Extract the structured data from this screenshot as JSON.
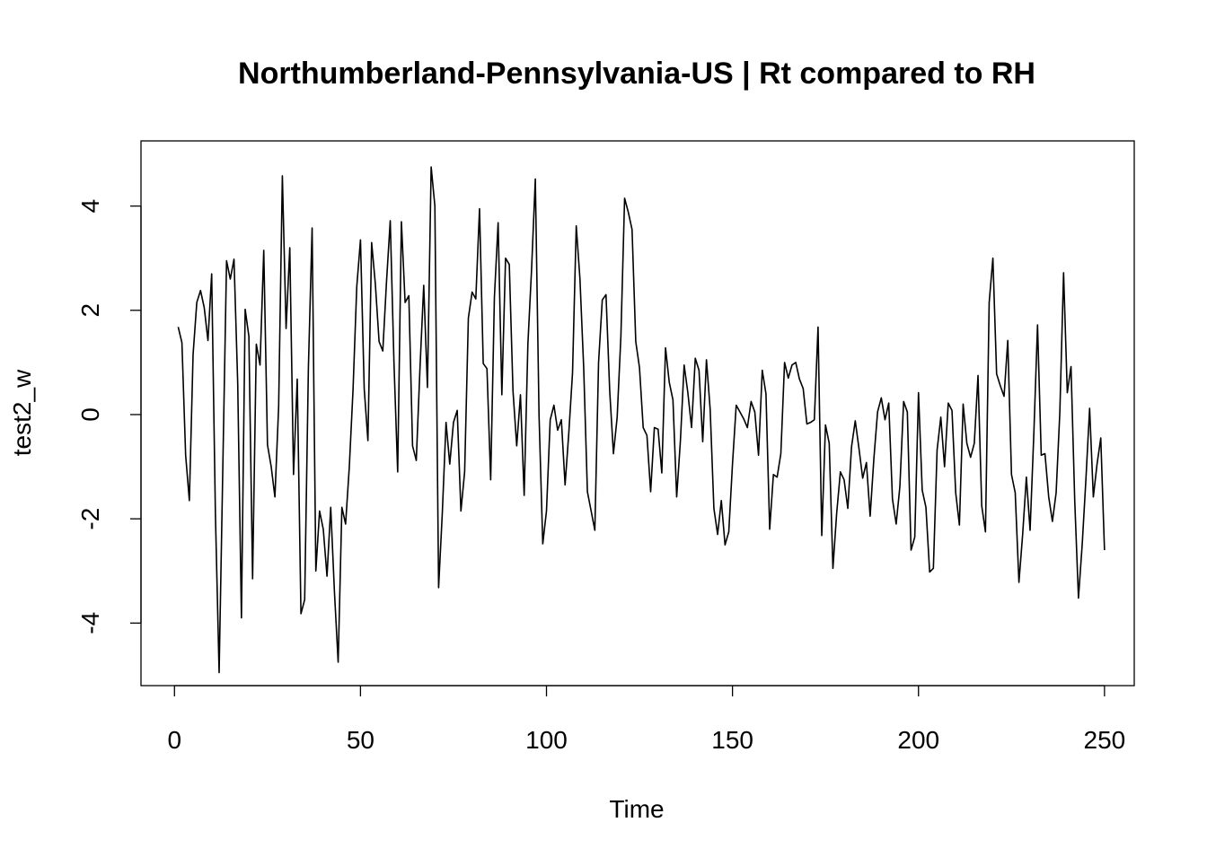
{
  "chart_data": {
    "type": "line",
    "title": "Northumberland-Pennsylvania-US | Rt compared to RH",
    "xlabel": "Time",
    "ylabel": "test2_w",
    "xlim": [
      -9,
      258
    ],
    "ylim": [
      -5.2,
      5.25
    ],
    "x_ticks": [
      0,
      50,
      100,
      150,
      200,
      250
    ],
    "y_ticks": [
      -4,
      -2,
      0,
      2,
      4
    ],
    "grid": false,
    "legend": "none",
    "line_color": "#000000",
    "series": [
      {
        "x_start": 1,
        "x_step": 1,
        "values": [
          1.68,
          1.38,
          -0.78,
          -1.65,
          1.15,
          2.15,
          2.38,
          2.05,
          1.42,
          2.7,
          -1.9,
          -4.95,
          -1.0,
          2.95,
          2.6,
          2.98,
          0.6,
          -3.9,
          2.02,
          1.5,
          -3.15,
          1.35,
          0.95,
          3.15,
          -0.58,
          -1.0,
          -1.58,
          0.15,
          4.58,
          1.65,
          3.2,
          -1.15,
          0.68,
          -3.82,
          -3.55,
          0.9,
          3.58,
          -3.0,
          -1.85,
          -2.2,
          -3.1,
          -1.78,
          -3.4,
          -4.75,
          -1.78,
          -2.1,
          -1.0,
          0.48,
          2.45,
          3.35,
          0.5,
          -0.5,
          3.3,
          2.5,
          1.4,
          1.22,
          2.55,
          3.72,
          1.0,
          -1.1,
          3.7,
          2.15,
          2.28,
          -0.6,
          -0.88,
          0.9,
          2.48,
          0.52,
          4.75,
          4.0,
          -3.32,
          -1.88,
          -0.15,
          -0.95,
          -0.15,
          0.08,
          -1.85,
          -1.1,
          1.85,
          2.35,
          2.22,
          3.95,
          0.98,
          0.88,
          -1.25,
          2.25,
          3.68,
          0.38,
          3.0,
          2.88,
          0.45,
          -0.6,
          0.38,
          -1.55,
          1.35,
          2.8,
          4.52,
          -0.02,
          -2.48,
          -1.85,
          -0.1,
          0.18,
          -0.3,
          -0.1,
          -1.35,
          -0.35,
          0.8,
          3.62,
          2.6,
          0.9,
          -1.48,
          -1.85,
          -2.22,
          1.0,
          2.2,
          2.3,
          0.45,
          -0.75,
          -0.05,
          1.5,
          4.15,
          3.88,
          3.55,
          1.4,
          0.9,
          -0.25,
          -0.4,
          -1.48,
          -0.25,
          -0.28,
          -1.12,
          1.28,
          0.62,
          0.28,
          -1.58,
          -0.5,
          0.95,
          0.42,
          -0.25,
          1.08,
          0.85,
          -0.52,
          1.05,
          0.1,
          -1.8,
          -2.3,
          -1.65,
          -2.5,
          -2.25,
          -0.95,
          0.18,
          0.05,
          -0.08,
          -0.25,
          0.25,
          0.05,
          -0.78,
          0.85,
          0.4,
          -2.2,
          -1.15,
          -1.2,
          -0.75,
          1.0,
          0.7,
          0.95,
          1.0,
          0.68,
          0.5,
          -0.18,
          -0.15,
          -0.1,
          1.68,
          -2.32,
          -0.2,
          -0.55,
          -2.95,
          -1.9,
          -1.1,
          -1.25,
          -1.8,
          -0.62,
          -0.12,
          -0.65,
          -1.22,
          -0.92,
          -1.95,
          -0.85,
          0.05,
          0.32,
          -0.1,
          0.22,
          -1.62,
          -2.1,
          -1.38,
          0.25,
          0.05,
          -2.6,
          -2.35,
          0.42,
          -1.45,
          -1.78,
          -3.02,
          -2.95,
          -0.68,
          -0.05,
          -1.0,
          0.22,
          0.08,
          -1.5,
          -2.12,
          0.2,
          -0.55,
          -0.82,
          -0.55,
          0.75,
          -1.75,
          -2.25,
          2.15,
          3.0,
          0.78,
          0.55,
          0.35,
          1.42,
          -1.15,
          -1.5,
          -3.22,
          -2.3,
          -1.2,
          -2.22,
          -0.38,
          1.72,
          -0.78,
          -0.75,
          -1.58,
          -2.05,
          -1.5,
          0.05,
          2.72,
          0.42,
          0.92,
          -1.65,
          -3.52,
          -2.5,
          -1.25,
          0.12,
          -1.58,
          -0.95,
          -0.45,
          -2.6
        ]
      }
    ]
  }
}
